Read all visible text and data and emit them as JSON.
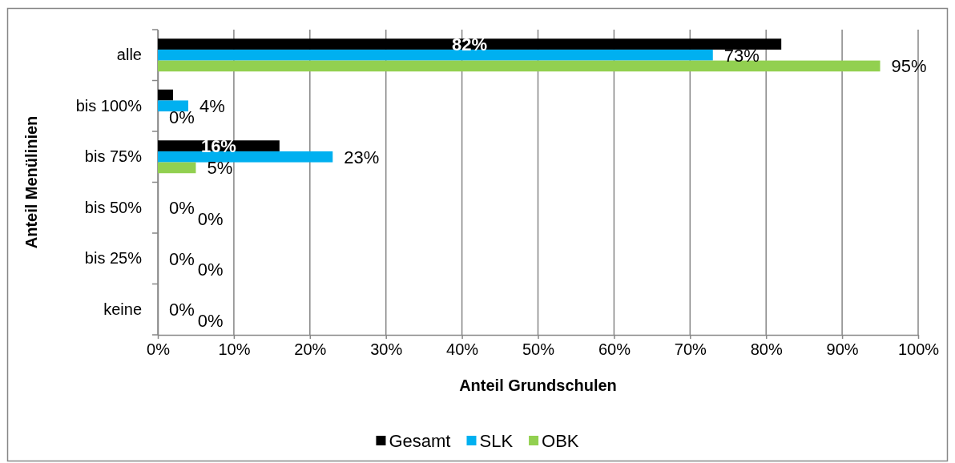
{
  "chart_data": {
    "type": "bar",
    "orientation": "horizontal",
    "xlabel": "Anteil Grundschulen",
    "ylabel": "Anteil Menülinien",
    "categories": [
      "alle",
      "bis 100%",
      "bis 75%",
      "bis 50%",
      "bis 25%",
      "keine"
    ],
    "series": [
      {
        "name": "Gesamt",
        "color": "#000000",
        "values": [
          82,
          2,
          16,
          0,
          0,
          0
        ],
        "value_labels": [
          "82%",
          null,
          "16%",
          null,
          null,
          null
        ]
      },
      {
        "name": "SLK",
        "color": "#00b0f0",
        "values": [
          73,
          4,
          23,
          0,
          0,
          0
        ],
        "value_labels": [
          "73%",
          "4%",
          "23%",
          "0%",
          "0%",
          "0%"
        ]
      },
      {
        "name": "OBK",
        "color": "#92d050",
        "values": [
          95,
          0,
          5,
          0,
          0,
          0
        ],
        "value_labels": [
          "95%",
          "0%",
          "5%",
          "0%",
          "0%",
          "0%"
        ]
      }
    ],
    "xlim": [
      0,
      100
    ],
    "xticks": [
      {
        "value": 0,
        "label": "0%"
      },
      {
        "value": 10,
        "label": "10%"
      },
      {
        "value": 20,
        "label": "20%"
      },
      {
        "value": 30,
        "label": "30%"
      },
      {
        "value": 40,
        "label": "40%"
      },
      {
        "value": 50,
        "label": "50%"
      },
      {
        "value": 60,
        "label": "60%"
      },
      {
        "value": 70,
        "label": "70%"
      },
      {
        "value": 80,
        "label": "80%"
      },
      {
        "value": 90,
        "label": "90%"
      },
      {
        "value": 100,
        "label": "100%"
      }
    ],
    "grid": "x",
    "legend": "bottom"
  }
}
